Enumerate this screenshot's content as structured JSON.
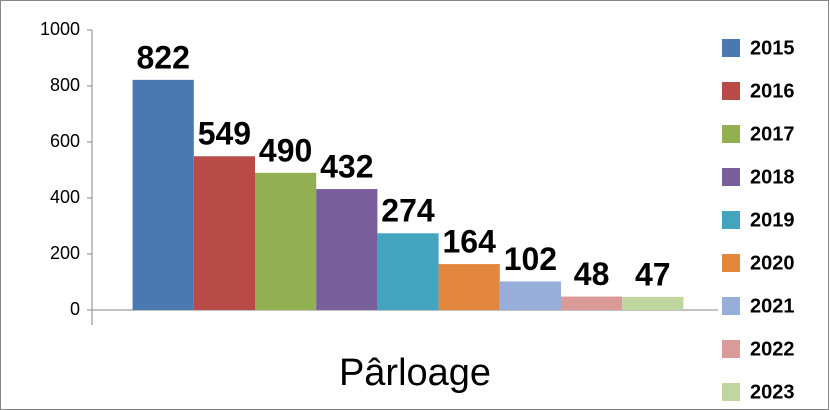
{
  "chart_data": {
    "type": "bar",
    "categories": [
      "Pârloage"
    ],
    "series": [
      {
        "name": "2015",
        "color": "#4a78b0",
        "values": [
          822
        ]
      },
      {
        "name": "2016",
        "color": "#b84a47",
        "values": [
          549
        ]
      },
      {
        "name": "2017",
        "color": "#92b051",
        "values": [
          490
        ]
      },
      {
        "name": "2018",
        "color": "#785e9b",
        "values": [
          432
        ]
      },
      {
        "name": "2019",
        "color": "#43a4bf",
        "values": [
          274
        ]
      },
      {
        "name": "2020",
        "color": "#e3873c",
        "values": [
          164
        ]
      },
      {
        "name": "2021",
        "color": "#97aedb",
        "values": [
          102
        ]
      },
      {
        "name": "2022",
        "color": "#d99a98",
        "values": [
          48
        ]
      },
      {
        "name": "2023",
        "color": "#c0d69f",
        "values": [
          47
        ]
      }
    ],
    "ylim": [
      0,
      1000
    ],
    "yticks": [
      0,
      200,
      400,
      600,
      800,
      1000
    ],
    "legend": "right"
  }
}
